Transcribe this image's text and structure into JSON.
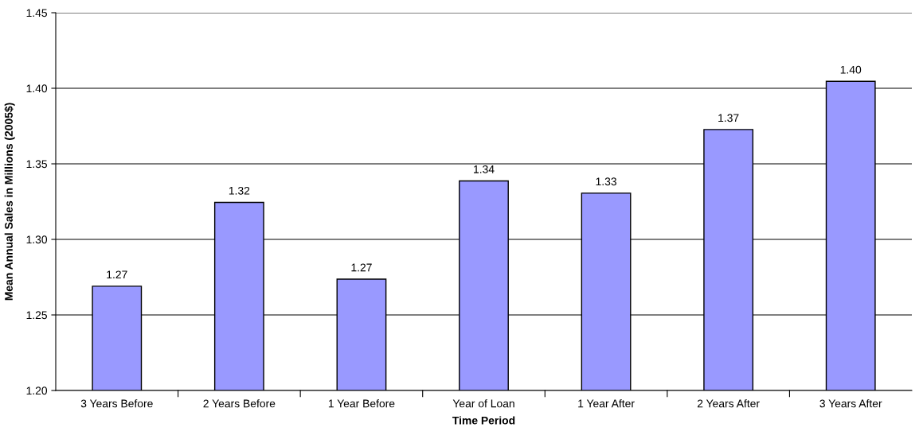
{
  "chart_data": {
    "type": "bar",
    "xlabel": "Time Period",
    "ylabel": "Mean Annual Sales in Millions (2005$)",
    "categories": [
      "3 Years Before",
      "2 Years Before",
      "1 Year Before",
      "Year of Loan",
      "1 Year After",
      "2 Years After",
      "3 Years After"
    ],
    "values": [
      1.269,
      1.3245,
      1.2737,
      1.3387,
      1.3306,
      1.3727,
      1.4046
    ],
    "value_labels": [
      "1.27",
      "1.32",
      "1.27",
      "1.34",
      "1.33",
      "1.37",
      "1.40"
    ],
    "color": "#9999ff",
    "ylim": [
      1.2,
      1.45
    ],
    "yticks": [
      {
        "value": 1.2,
        "label": "1.20"
      },
      {
        "value": 1.25,
        "label": "1.25"
      },
      {
        "value": 1.3,
        "label": "1.30"
      },
      {
        "value": 1.35,
        "label": "1.35"
      },
      {
        "value": 1.4,
        "label": "1.40"
      },
      {
        "value": 1.45,
        "label": "1.45"
      }
    ],
    "grid": "y",
    "legend": false
  }
}
